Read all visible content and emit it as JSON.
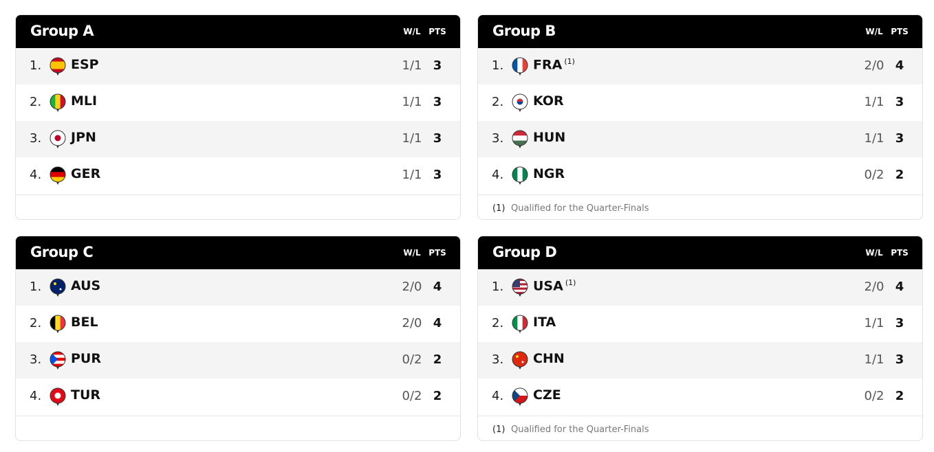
{
  "groups": [
    {
      "title": "Group A",
      "columns": [
        "W/L",
        "PTS"
      ],
      "rows": [
        {
          "rank": "1.",
          "team": "ESP",
          "wl": "1/1",
          "pts": 3
        },
        {
          "rank": "2.",
          "team": "MLI",
          "wl": "1/1",
          "pts": 3
        },
        {
          "rank": "3.",
          "team": "JPN",
          "wl": "1/1",
          "pts": 3
        },
        {
          "rank": "4.",
          "team": "GER",
          "wl": "1/1",
          "pts": 3
        }
      ]
    },
    {
      "title": "Group B",
      "columns": [
        "W/L",
        "PTS"
      ],
      "rows": [
        {
          "rank": "1.",
          "team": "FRA",
          "note": "(1)",
          "wl": "2/0",
          "pts": 4
        },
        {
          "rank": "2.",
          "team": "KOR",
          "wl": "1/1",
          "pts": 3
        },
        {
          "rank": "3.",
          "team": "HUN",
          "wl": "1/1",
          "pts": 3
        },
        {
          "rank": "4.",
          "team": "NGR",
          "wl": "0/2",
          "pts": 2
        }
      ],
      "footnote": {
        "marker": "(1)",
        "text": "Qualified for the Quarter-Finals"
      }
    },
    {
      "title": "Group C",
      "columns": [
        "W/L",
        "PTS"
      ],
      "rows": [
        {
          "rank": "1.",
          "team": "AUS",
          "wl": "2/0",
          "pts": 4
        },
        {
          "rank": "2.",
          "team": "BEL",
          "wl": "2/0",
          "pts": 4
        },
        {
          "rank": "3.",
          "team": "PUR",
          "wl": "0/2",
          "pts": 2
        },
        {
          "rank": "4.",
          "team": "TUR",
          "wl": "0/2",
          "pts": 2
        }
      ]
    },
    {
      "title": "Group D",
      "columns": [
        "W/L",
        "PTS"
      ],
      "rows": [
        {
          "rank": "1.",
          "team": "USA",
          "note": "(1)",
          "wl": "2/0",
          "pts": 4
        },
        {
          "rank": "2.",
          "team": "ITA",
          "wl": "1/1",
          "pts": 3
        },
        {
          "rank": "3.",
          "team": "CHN",
          "wl": "1/1",
          "pts": 3
        },
        {
          "rank": "4.",
          "team": "CZE",
          "wl": "0/2",
          "pts": 2
        }
      ],
      "footnote": {
        "marker": "(1)",
        "text": "Qualified for the Quarter-Finals"
      }
    }
  ]
}
